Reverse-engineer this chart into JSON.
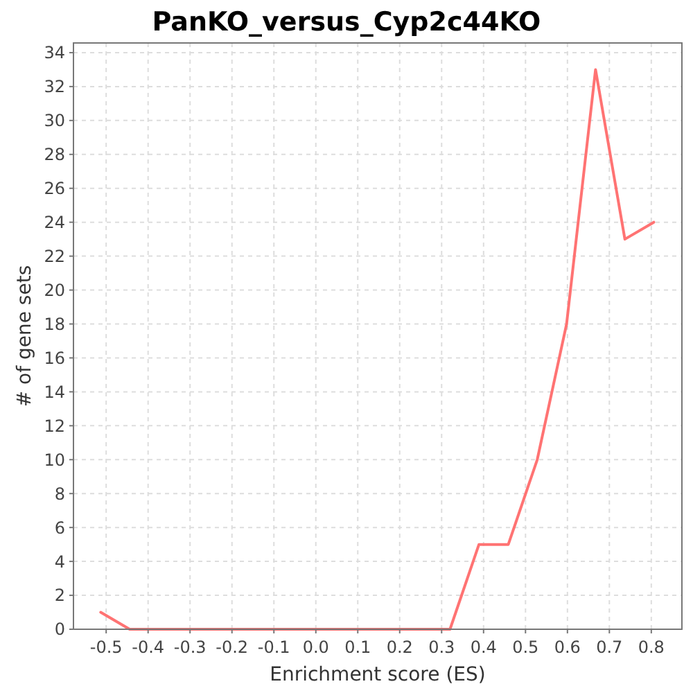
{
  "chart_data": {
    "type": "line",
    "title": "PanKO_versus_Cyp2c44KO",
    "xlabel": "Enrichment score (ES)",
    "ylabel": "# of gene sets",
    "x": [
      -0.513,
      -0.444,
      -0.374,
      -0.305,
      -0.235,
      -0.166,
      -0.097,
      -0.027,
      0.042,
      0.112,
      0.181,
      0.25,
      0.32,
      0.389,
      0.459,
      0.528,
      0.598,
      0.667,
      0.737,
      0.806
    ],
    "series": [
      {
        "color": "#ff7373",
        "values": [
          1,
          0,
          0,
          0,
          0,
          0,
          0,
          0,
          0,
          0,
          0,
          0,
          0,
          5,
          5,
          10,
          18,
          33,
          23,
          24
        ]
      }
    ],
    "xlim": [
      -0.578,
      0.873
    ],
    "ylim": [
      0,
      34.57
    ],
    "xticks": [
      -0.5,
      -0.4,
      -0.3,
      -0.2,
      -0.1,
      {
        "value": 0,
        "label": "0.0"
      },
      0.1,
      0.2,
      0.3,
      0.4,
      0.5,
      0.6,
      0.7,
      0.8
    ],
    "yticks": [
      0,
      2,
      4,
      6,
      8,
      10,
      12,
      14,
      16,
      18,
      20,
      22,
      24,
      26,
      28,
      30,
      32,
      34
    ],
    "grid": true
  }
}
